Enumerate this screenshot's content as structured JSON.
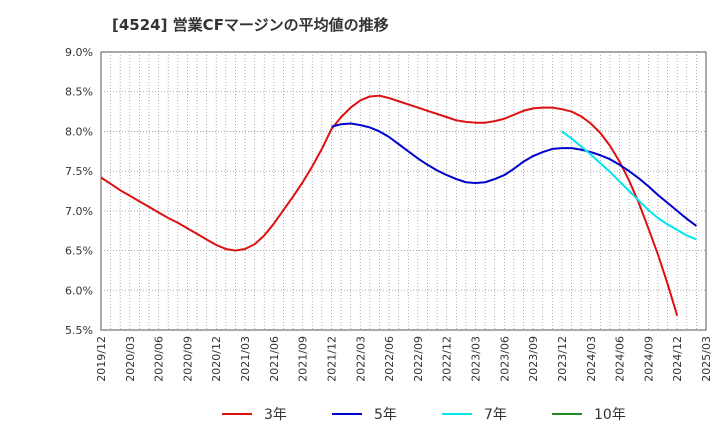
{
  "chart_data": {
    "type": "line",
    "title": "[4524]  営業CFマージンの平均値の推移",
    "xlabel": "",
    "ylabel": "",
    "x_ticks": [
      "2019/12",
      "2020/03",
      "2020/06",
      "2020/09",
      "2020/12",
      "2021/03",
      "2021/06",
      "2021/09",
      "2021/12",
      "2022/03",
      "2022/06",
      "2022/09",
      "2022/12",
      "2023/03",
      "2023/06",
      "2023/09",
      "2023/12",
      "2024/03",
      "2024/06",
      "2024/09",
      "2024/12",
      "2025/03"
    ],
    "y_ticks": [
      "5.5%",
      "6.0%",
      "6.5%",
      "7.0%",
      "7.5%",
      "8.0%",
      "8.5%",
      "9.0%"
    ],
    "ylim": [
      5.5,
      9.0
    ],
    "grid": true,
    "legend_position": "bottom",
    "series": [
      {
        "name": "3年",
        "color": "#dd1111",
        "points": [
          [
            "2019/12",
            7.42
          ],
          [
            "2020/01",
            7.34
          ],
          [
            "2020/02",
            7.26
          ],
          [
            "2020/03",
            7.19
          ],
          [
            "2020/04",
            7.12
          ],
          [
            "2020/05",
            7.05
          ],
          [
            "2020/06",
            6.98
          ],
          [
            "2020/07",
            6.91
          ],
          [
            "2020/08",
            6.85
          ],
          [
            "2020/09",
            6.78
          ],
          [
            "2020/10",
            6.71
          ],
          [
            "2020/11",
            6.64
          ],
          [
            "2020/12",
            6.57
          ],
          [
            "2021/01",
            6.52
          ],
          [
            "2021/02",
            6.5
          ],
          [
            "2021/03",
            6.52
          ],
          [
            "2021/04",
            6.58
          ],
          [
            "2021/05",
            6.69
          ],
          [
            "2021/06",
            6.84
          ],
          [
            "2021/07",
            7.01
          ],
          [
            "2021/08",
            7.18
          ],
          [
            "2021/09",
            7.36
          ],
          [
            "2021/10",
            7.56
          ],
          [
            "2021/11",
            7.78
          ],
          [
            "2021/12",
            8.03
          ],
          [
            "2022/01",
            8.18
          ],
          [
            "2022/02",
            8.3
          ],
          [
            "2022/03",
            8.39
          ],
          [
            "2022/04",
            8.44
          ],
          [
            "2022/05",
            8.45
          ],
          [
            "2022/06",
            8.42
          ],
          [
            "2022/07",
            8.38
          ],
          [
            "2022/08",
            8.34
          ],
          [
            "2022/09",
            8.3
          ],
          [
            "2022/10",
            8.26
          ],
          [
            "2022/11",
            8.22
          ],
          [
            "2022/12",
            8.18
          ],
          [
            "2023/01",
            8.14
          ],
          [
            "2023/02",
            8.12
          ],
          [
            "2023/03",
            8.11
          ],
          [
            "2023/04",
            8.11
          ],
          [
            "2023/05",
            8.13
          ],
          [
            "2023/06",
            8.16
          ],
          [
            "2023/07",
            8.21
          ],
          [
            "2023/08",
            8.26
          ],
          [
            "2023/09",
            8.29
          ],
          [
            "2023/10",
            8.3
          ],
          [
            "2023/11",
            8.3
          ],
          [
            "2023/12",
            8.28
          ],
          [
            "2024/01",
            8.25
          ],
          [
            "2024/02",
            8.19
          ],
          [
            "2024/03",
            8.1
          ],
          [
            "2024/04",
            7.98
          ],
          [
            "2024/05",
            7.82
          ],
          [
            "2024/06",
            7.62
          ],
          [
            "2024/07",
            7.38
          ],
          [
            "2024/08",
            7.1
          ],
          [
            "2024/09",
            6.78
          ],
          [
            "2024/10",
            6.45
          ],
          [
            "2024/11",
            6.08
          ],
          [
            "2024/12",
            5.68
          ]
        ]
      },
      {
        "name": "5年",
        "color": "#0000cc",
        "points": [
          [
            "2021/12",
            8.06
          ],
          [
            "2022/01",
            8.09
          ],
          [
            "2022/02",
            8.1
          ],
          [
            "2022/03",
            8.08
          ],
          [
            "2022/04",
            8.05
          ],
          [
            "2022/05",
            8.0
          ],
          [
            "2022/06",
            7.93
          ],
          [
            "2022/07",
            7.84
          ],
          [
            "2022/08",
            7.75
          ],
          [
            "2022/09",
            7.66
          ],
          [
            "2022/10",
            7.58
          ],
          [
            "2022/11",
            7.51
          ],
          [
            "2022/12",
            7.45
          ],
          [
            "2023/01",
            7.4
          ],
          [
            "2023/02",
            7.36
          ],
          [
            "2023/03",
            7.35
          ],
          [
            "2023/04",
            7.36
          ],
          [
            "2023/05",
            7.4
          ],
          [
            "2023/06",
            7.45
          ],
          [
            "2023/07",
            7.53
          ],
          [
            "2023/08",
            7.62
          ],
          [
            "2023/09",
            7.69
          ],
          [
            "2023/10",
            7.74
          ],
          [
            "2023/11",
            7.78
          ],
          [
            "2023/12",
            7.79
          ],
          [
            "2024/01",
            7.79
          ],
          [
            "2024/02",
            7.77
          ],
          [
            "2024/03",
            7.74
          ],
          [
            "2024/04",
            7.7
          ],
          [
            "2024/05",
            7.65
          ],
          [
            "2024/06",
            7.58
          ],
          [
            "2024/07",
            7.5
          ],
          [
            "2024/08",
            7.41
          ],
          [
            "2024/09",
            7.31
          ],
          [
            "2024/10",
            7.2
          ],
          [
            "2024/11",
            7.1
          ],
          [
            "2024/12",
            7.0
          ],
          [
            "2025/01",
            6.9
          ],
          [
            "2025/02",
            6.81
          ]
        ]
      },
      {
        "name": "7年",
        "color": "#00e5ee",
        "points": [
          [
            "2023/12",
            8.0
          ],
          [
            "2024/01",
            7.91
          ],
          [
            "2024/02",
            7.81
          ],
          [
            "2024/03",
            7.71
          ],
          [
            "2024/04",
            7.6
          ],
          [
            "2024/05",
            7.49
          ],
          [
            "2024/06",
            7.37
          ],
          [
            "2024/07",
            7.25
          ],
          [
            "2024/08",
            7.13
          ],
          [
            "2024/09",
            7.01
          ],
          [
            "2024/10",
            6.91
          ],
          [
            "2024/11",
            6.83
          ],
          [
            "2024/12",
            6.76
          ],
          [
            "2025/01",
            6.69
          ],
          [
            "2025/02",
            6.64
          ]
        ]
      },
      {
        "name": "10年",
        "color": "#228b22",
        "points": []
      }
    ]
  }
}
